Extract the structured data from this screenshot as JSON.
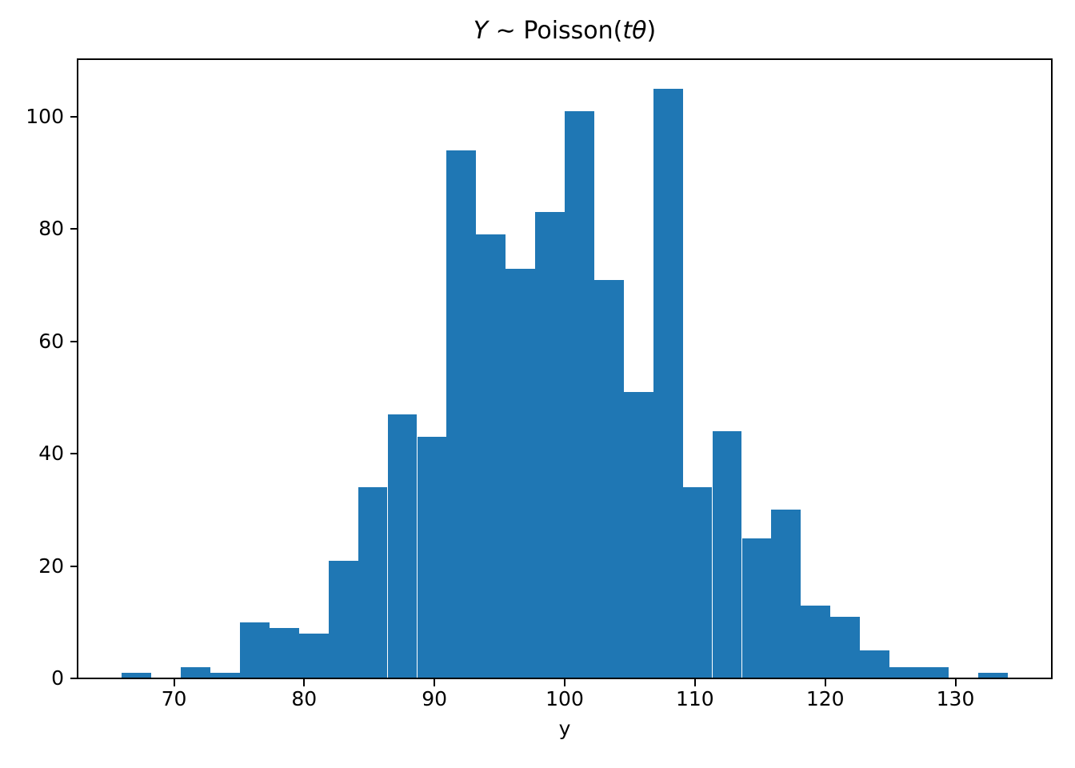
{
  "figure": {
    "background": "#ffffff",
    "bar_color": "#1f77b4",
    "axis_color": "#000000"
  },
  "chart_data": {
    "type": "bar",
    "subtype": "histogram",
    "title": "Y ~ Poisson(tθ)",
    "title_parts": [
      {
        "text": "Y",
        "italic": true
      },
      {
        "text": " ∼ Poisson(",
        "italic": false
      },
      {
        "text": "tθ",
        "italic": true
      },
      {
        "text": ")",
        "italic": false
      }
    ],
    "xlabel": "y",
    "ylabel": "",
    "bin_start": 66,
    "bin_end": 134,
    "bin_count": 30,
    "bin_width": 2.2667,
    "counts": [
      1,
      0,
      2,
      1,
      10,
      9,
      8,
      21,
      34,
      47,
      43,
      94,
      79,
      73,
      83,
      101,
      71,
      51,
      105,
      34,
      44,
      25,
      30,
      13,
      11,
      5,
      2,
      2,
      0,
      1
    ],
    "total_samples": 1000,
    "xlim": [
      62.6,
      137.4
    ],
    "ylim": [
      0,
      110.25
    ],
    "x_ticks": [
      70,
      80,
      90,
      100,
      110,
      120,
      130
    ],
    "y_ticks": [
      0,
      20,
      40,
      60,
      80,
      100
    ],
    "grid": false,
    "legend": null
  }
}
